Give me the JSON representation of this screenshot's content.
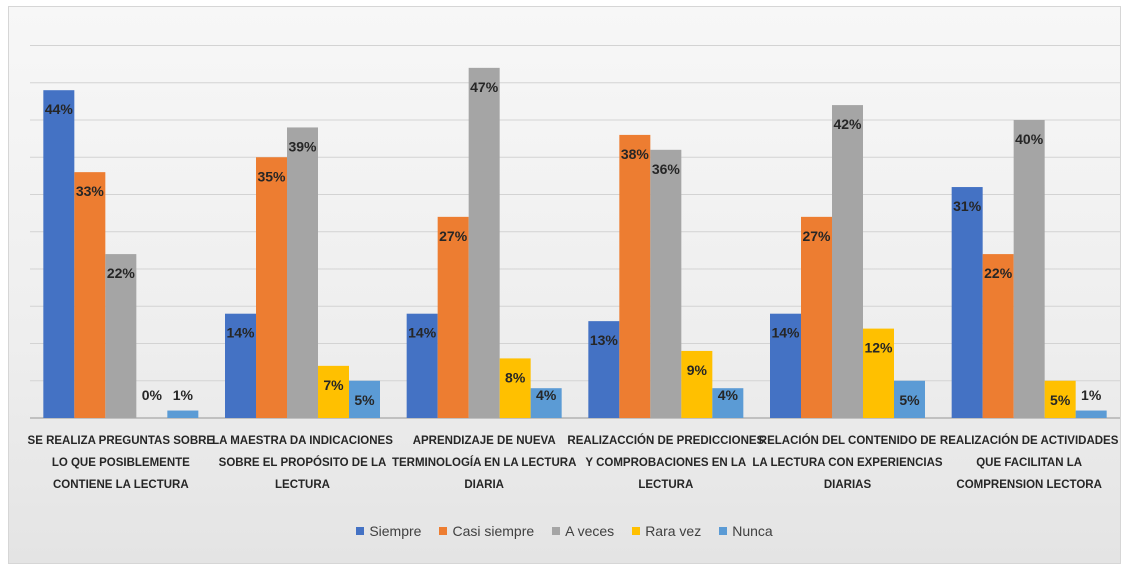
{
  "chart_data": {
    "type": "bar",
    "categories": [
      [
        "SE REALIZA PREGUNTAS SOBRE",
        "LO QUE POSIBLEMENTE",
        "CONTIENE LA LECTURA"
      ],
      [
        "LA MAESTRA DA INDICACIONES",
        "SOBRE EL PROPÓSITO DE LA",
        "LECTURA"
      ],
      [
        "APRENDIZAJE DE NUEVA",
        "TERMINOLOGÍA EN LA LECTURA",
        "DIARIA"
      ],
      [
        "REALIZACCIÓN DE PREDICCIONES",
        "Y COMPROBACIONES EN LA",
        "LECTURA"
      ],
      [
        "RELACIÓN DEL CONTENIDO DE",
        "LA LECTURA CON EXPERIENCIAS",
        "DIARIAS"
      ],
      [
        "REALIZACIÓN DE ACTIVIDADES",
        "QUE FACILITAN LA",
        "COMPRENSION LECTORA"
      ]
    ],
    "series": [
      {
        "name": "Siempre",
        "color": "#4472c4",
        "values": [
          44,
          14,
          14,
          13,
          14,
          31
        ],
        "labels": [
          "44%",
          "14%",
          "14%",
          "13%",
          "14%",
          "31%"
        ]
      },
      {
        "name": "Casi siempre",
        "color": "#ed7d31",
        "values": [
          33,
          35,
          27,
          38,
          27,
          22
        ],
        "labels": [
          "33%",
          "35%",
          "27%",
          "38%",
          "27%",
          "22%"
        ]
      },
      {
        "name": "A veces",
        "color": "#a5a5a5",
        "values": [
          22,
          39,
          47,
          36,
          42,
          40
        ],
        "labels": [
          "22%",
          "39%",
          "47%",
          "36%",
          "42%",
          "40%"
        ]
      },
      {
        "name": "Rara vez",
        "color": "#ffc000",
        "values": [
          0,
          7,
          8,
          9,
          12,
          5
        ],
        "labels": [
          "0%",
          "7%",
          "8%",
          "9%",
          "12%",
          "5%"
        ]
      },
      {
        "name": "Nunca",
        "color": "#5b9bd5",
        "values": [
          1,
          5,
          4,
          4,
          5,
          1
        ],
        "labels": [
          "1%",
          "5%",
          "4%",
          "4%",
          "5%",
          "1%"
        ]
      }
    ],
    "ylim": [
      0,
      50
    ],
    "grid": true,
    "legend_position": "bottom"
  }
}
